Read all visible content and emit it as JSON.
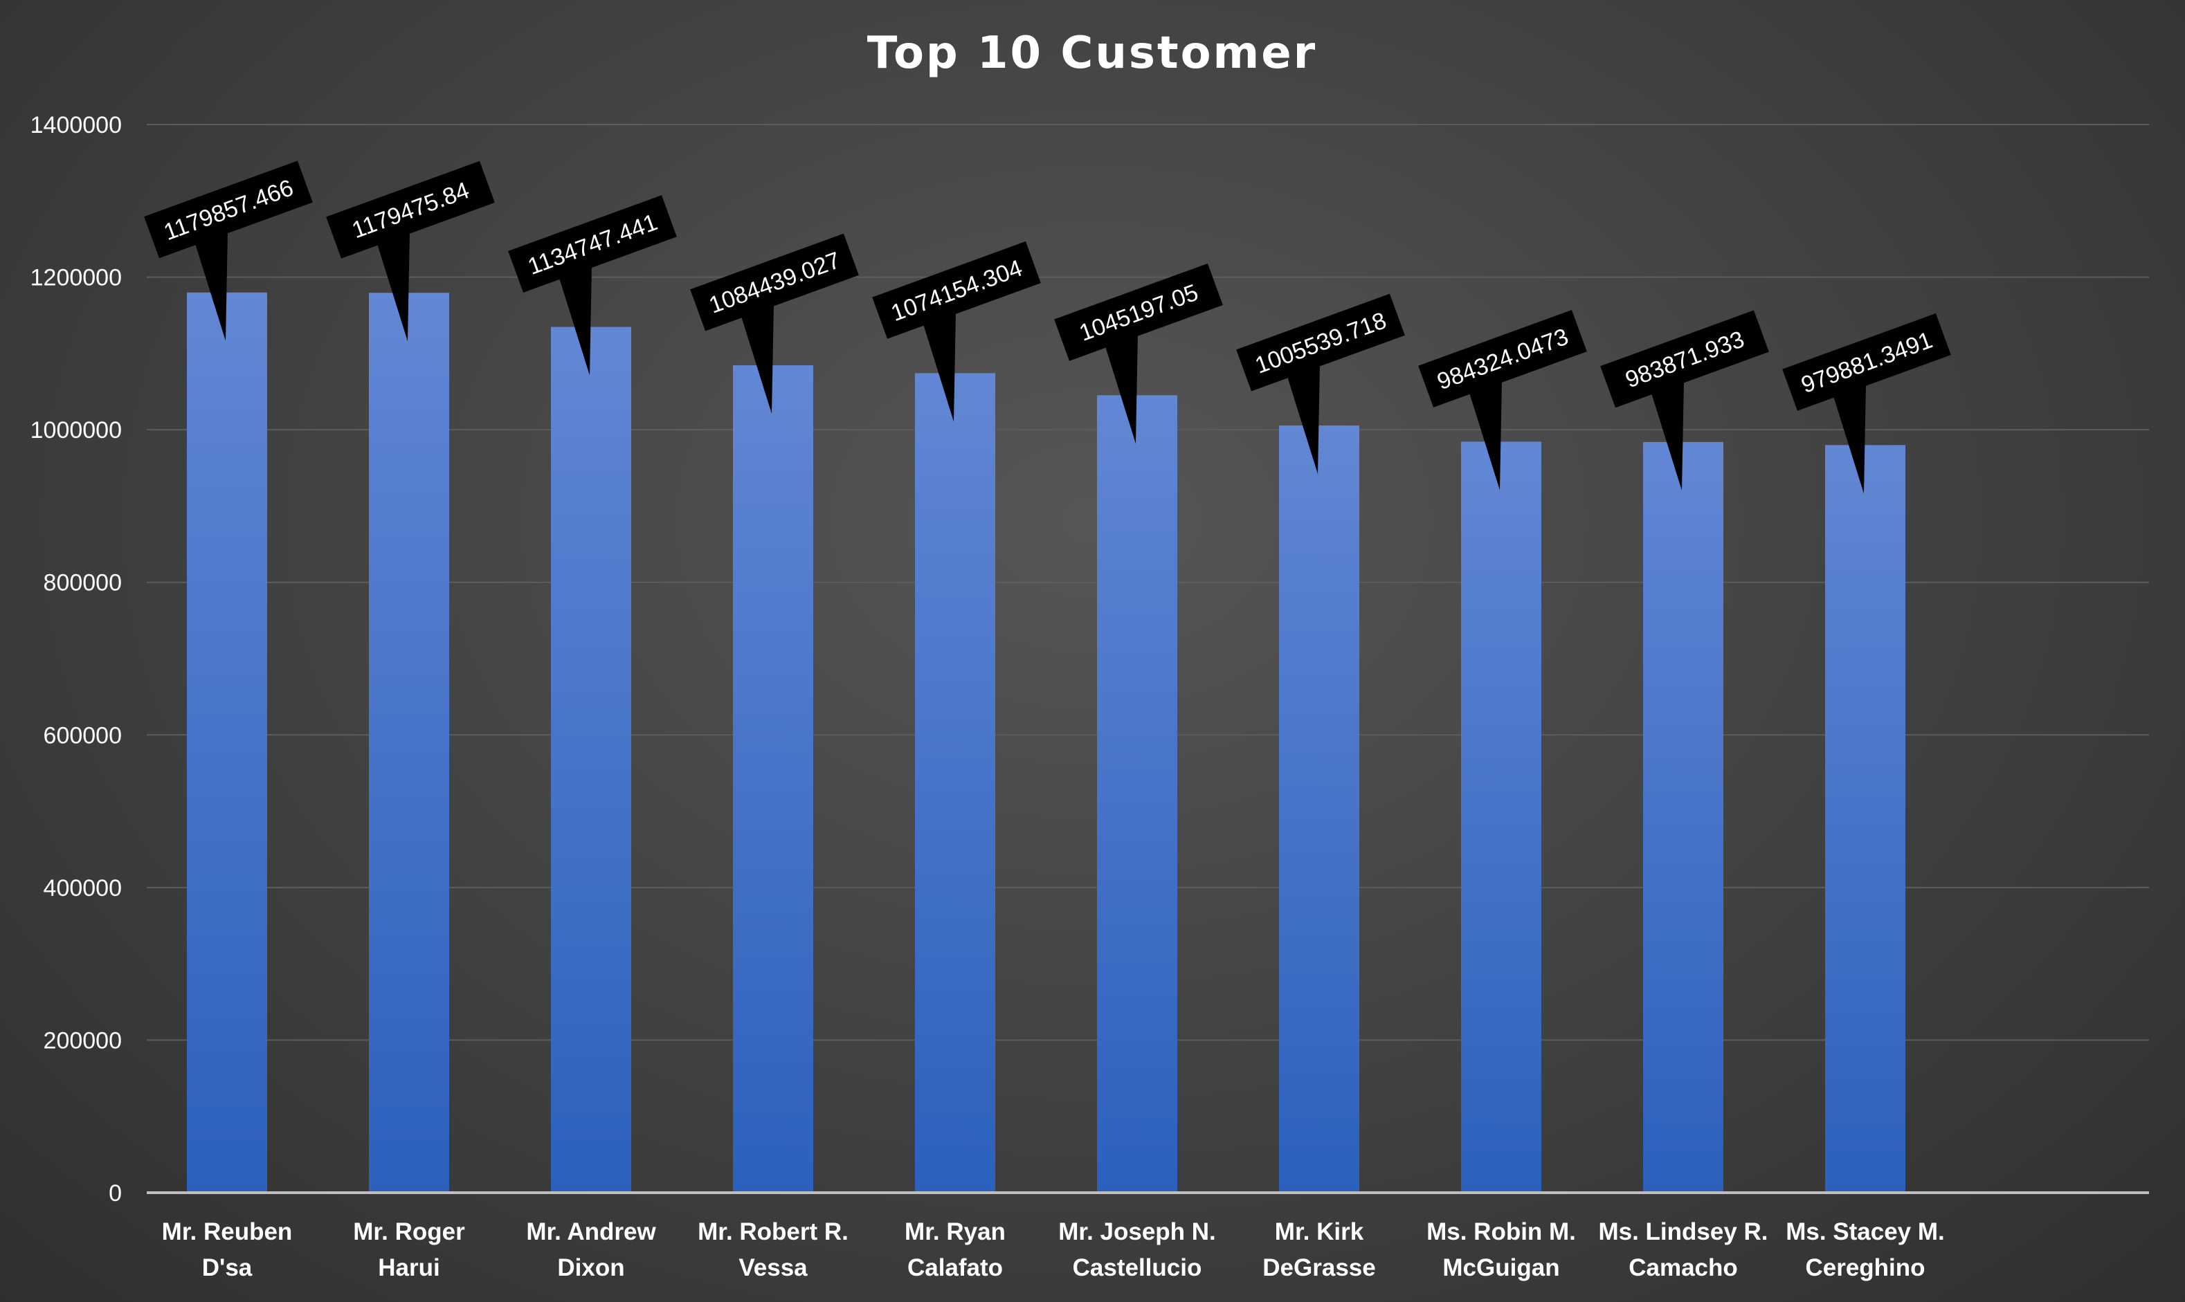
{
  "chart_data": {
    "type": "bar",
    "title": "Top 10 Customer",
    "xlabel": "",
    "ylabel": "",
    "categories": [
      [
        "Mr. Reuben",
        "D'sa"
      ],
      [
        "Mr. Roger",
        "Harui"
      ],
      [
        "Mr. Andrew",
        "Dixon"
      ],
      [
        "Mr. Robert R.",
        "Vessa"
      ],
      [
        "Mr. Ryan",
        "Calafato"
      ],
      [
        "Mr. Joseph N.",
        "Castellucio"
      ],
      [
        "Mr. Kirk",
        "DeGrasse"
      ],
      [
        "Ms. Robin M.",
        "McGuigan"
      ],
      [
        "Ms. Lindsey R.",
        "Camacho"
      ],
      [
        "Ms. Stacey M.",
        "Cereghino"
      ]
    ],
    "values": [
      1179857.466,
      1179475.84,
      1134747.441,
      1084439.027,
      1074154.304,
      1045197.05,
      1005539.718,
      984324.0473,
      983871.933,
      979881.3491
    ],
    "data_labels": [
      "1179857.466",
      "1179475.84",
      "1134747.441",
      "1084439.027",
      "1074154.304",
      "1045197.05",
      "1005539.718",
      "984324.0473",
      "983871.933",
      "979881.3491"
    ],
    "ylim": [
      0,
      1400000
    ],
    "yticks": [
      "0",
      "200000",
      "400000",
      "600000",
      "800000",
      "1000000",
      "1200000",
      "1400000"
    ],
    "ytick_values": [
      0,
      200000,
      400000,
      600000,
      800000,
      1000000,
      1200000,
      1400000
    ],
    "grid": true,
    "legend": "none",
    "colors": {
      "bar_top": "#6287d4",
      "bar_bottom": "#2c60bd",
      "label_box": "#000000",
      "label_text": "#ffffff",
      "title": "#ffffff",
      "axis_text": "#ffffff",
      "gridline": "#5c5c5c",
      "axis_line": "#bfbfbf"
    }
  }
}
